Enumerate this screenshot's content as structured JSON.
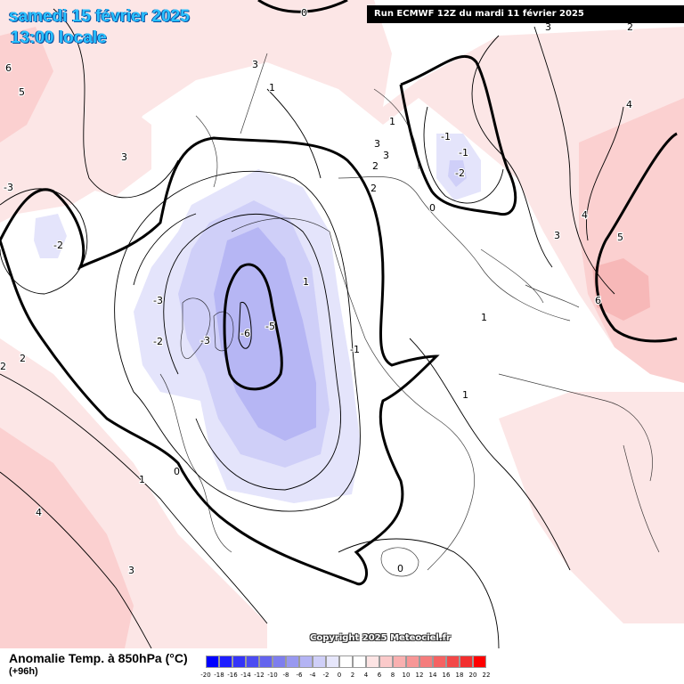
{
  "header": {
    "date": "samedi 15 février 2025",
    "local_time": "13:00 locale",
    "run_info": "Run ECMWF 12Z du mardi 11 février 2025"
  },
  "footer": {
    "variable_title": "Anomalie Temp. à 850hPa (°C)",
    "forecast_hour": "(+96h)",
    "copyright": "Copyright 2025 Meteociel.fr"
  },
  "legend": {
    "ticks": [
      "-20",
      "-18",
      "-16",
      "-14",
      "-12",
      "-10",
      "-8",
      "-6",
      "-4",
      "-2",
      "0",
      "2",
      "4",
      "6",
      "8",
      "10",
      "12",
      "14",
      "16",
      "18",
      "20",
      "22"
    ],
    "colors": [
      "#0000ff",
      "#1e1eff",
      "#3434f8",
      "#4c4cf2",
      "#6464ee",
      "#7e7eee",
      "#9898f0",
      "#b4b4f4",
      "#cfcff8",
      "#e6e6fb",
      "#ffffff",
      "#ffffff",
      "#fde4e4",
      "#fbcaca",
      "#f9b0b0",
      "#f79696",
      "#f57c7c",
      "#f56262",
      "#f34848",
      "#f22e2e",
      "#ff0000"
    ]
  },
  "map": {
    "colors": {
      "cold_light": "#e4e4fb",
      "cold_mid": "#cfcff8",
      "cold_deep": "#b6b6f4",
      "warm_light": "#fce6e6",
      "warm_mid": "#fbd0d0",
      "warm_deep": "#f7b8b8"
    },
    "contour_labels": [
      "0",
      "3",
      "-3",
      "6",
      "5",
      "3",
      "2",
      "-2",
      "-3",
      "-2",
      "-5",
      "-6",
      "-1",
      "-3",
      "2",
      "1",
      "0",
      "1",
      "-1",
      "-2",
      "0",
      "-1",
      "1",
      "2",
      "3",
      "3",
      "2",
      "4",
      "3",
      "5",
      "6",
      "4",
      "3",
      "1",
      "1",
      "0",
      "4",
      "3",
      "2",
      "1"
    ]
  }
}
